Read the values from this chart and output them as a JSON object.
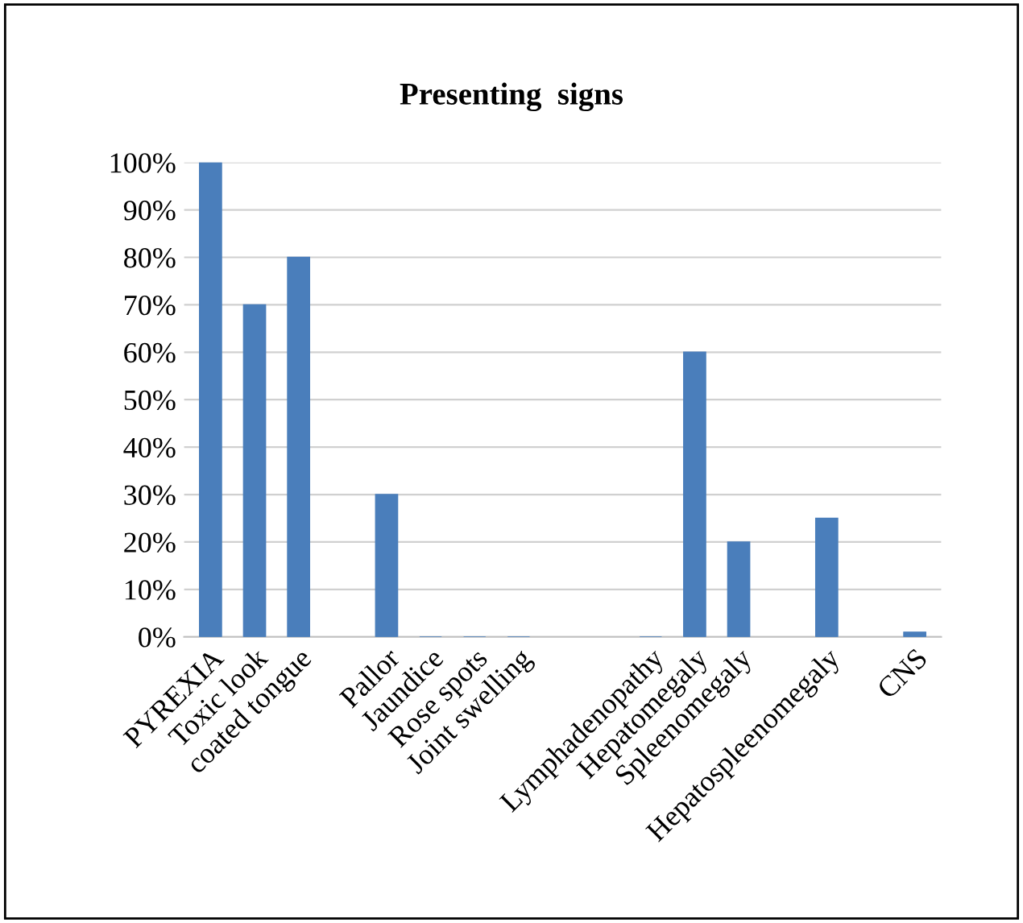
{
  "chart_data": {
    "type": "bar",
    "title": "Presenting  signs",
    "categories": [
      "PYREXIA",
      "Toxic look",
      "coated tongue",
      null,
      "Pallor",
      "Jaundice",
      "Rose spots",
      "Joint swelling",
      null,
      null,
      "Lymphadenopathy",
      "Hepatomegaly",
      "Spleenomegaly",
      null,
      "Hepatospleenomegaly",
      null,
      "CNS"
    ],
    "values": [
      100,
      70,
      80,
      null,
      30,
      0,
      0,
      0,
      null,
      null,
      0,
      60,
      20,
      null,
      25,
      null,
      1
    ],
    "color": "#4a7ebb",
    "ylim": [
      0,
      100
    ],
    "yticks": [
      {
        "value": 0,
        "label": "0%"
      },
      {
        "value": 10,
        "label": "10%"
      },
      {
        "value": 20,
        "label": "20%"
      },
      {
        "value": 30,
        "label": "30%"
      },
      {
        "value": 40,
        "label": "40%"
      },
      {
        "value": 50,
        "label": "50%"
      },
      {
        "value": 60,
        "label": "60%"
      },
      {
        "value": 70,
        "label": "70%"
      },
      {
        "value": 80,
        "label": "80%"
      },
      {
        "value": 90,
        "label": "90%"
      },
      {
        "value": 100,
        "label": "100%"
      }
    ],
    "grid": "y",
    "legend": false
  }
}
